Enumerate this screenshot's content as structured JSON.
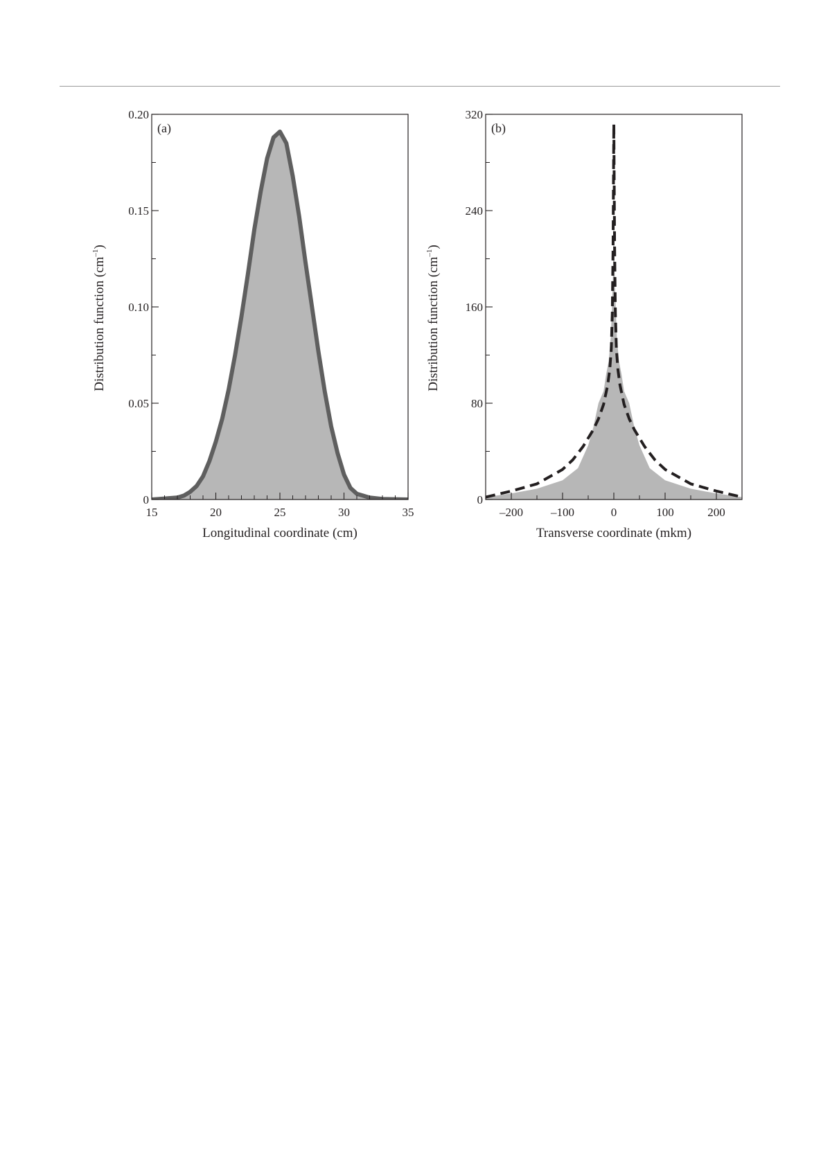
{
  "chart_data": [
    {
      "type": "area",
      "panel_label": "(a)",
      "xlabel": "Longitudinal coordinate (cm)",
      "ylabel": "Distribution function (cm",
      "ylabel_sup": "–1",
      "ylabel_end": ")",
      "xlim": [
        15,
        35
      ],
      "ylim": [
        0,
        0.2
      ],
      "x_ticks": [
        15,
        20,
        25,
        30,
        35
      ],
      "x_tick_labels": [
        "15",
        "20",
        "25",
        "30",
        "35"
      ],
      "y_ticks": [
        0,
        0.05,
        0.1,
        0.15,
        0.2
      ],
      "y_tick_labels": [
        "0",
        "0.05",
        "0.10",
        "0.15",
        "0.20"
      ],
      "colors": {
        "fill": "#b7b7b7",
        "line": "#5f5f5f",
        "axes": "#231f20"
      },
      "series": [
        {
          "style": "filled-histogram-with-solid-outline",
          "x": [
            15,
            16,
            17,
            17.5,
            18,
            18.5,
            19,
            19.5,
            20,
            20.5,
            21,
            21.5,
            22,
            22.5,
            23,
            23.5,
            24,
            24.5,
            25,
            25.5,
            26,
            26.5,
            27,
            27.5,
            28,
            28.5,
            29,
            29.5,
            30,
            30.5,
            31,
            32,
            33,
            35
          ],
          "y": [
            0,
            0.0005,
            0.001,
            0.002,
            0.004,
            0.007,
            0.012,
            0.02,
            0.03,
            0.042,
            0.057,
            0.075,
            0.095,
            0.117,
            0.14,
            0.16,
            0.177,
            0.188,
            0.191,
            0.185,
            0.168,
            0.147,
            0.123,
            0.1,
            0.077,
            0.056,
            0.038,
            0.024,
            0.013,
            0.006,
            0.003,
            0.001,
            0.0003,
            0
          ]
        }
      ]
    },
    {
      "type": "area",
      "panel_label": "(b)",
      "xlabel": "Transverse coordinate (mkm)",
      "ylabel": "Distribution function (cm",
      "ylabel_sup": "–1",
      "ylabel_end": ")",
      "xlim": [
        -250,
        250
      ],
      "ylim": [
        0,
        320
      ],
      "x_ticks": [
        -200,
        -100,
        0,
        100,
        200
      ],
      "x_tick_labels": [
        "–200",
        "–100",
        "0",
        "100",
        "200"
      ],
      "y_ticks": [
        0,
        80,
        160,
        240,
        320
      ],
      "y_tick_labels": [
        "0",
        "80",
        "160",
        "240",
        "320"
      ],
      "colors": {
        "fill": "#b7b7b7",
        "line": "#231f20",
        "axes": "#231f20"
      },
      "series": [
        {
          "style": "filled-histogram",
          "x": [
            -250,
            -200,
            -150,
            -100,
            -70,
            -50,
            -40,
            -30,
            -20,
            -15,
            -10,
            -6,
            -4,
            -2,
            -1,
            0,
            1,
            2,
            4,
            6,
            10,
            15,
            20,
            30,
            40,
            50,
            70,
            100,
            150,
            200,
            250
          ],
          "y": [
            2,
            5,
            9,
            16,
            26,
            45,
            60,
            80,
            90,
            104,
            115,
            135,
            155,
            180,
            210,
            300,
            210,
            180,
            155,
            135,
            115,
            104,
            90,
            80,
            60,
            45,
            26,
            16,
            9,
            5,
            2
          ]
        },
        {
          "style": "dashed-fit",
          "x": [
            -250,
            -200,
            -150,
            -100,
            -80,
            -60,
            -40,
            -30,
            -20,
            -12,
            -8,
            -5,
            -3,
            -1.5,
            0,
            1.5,
            3,
            5,
            8,
            12,
            20,
            30,
            40,
            60,
            80,
            100,
            150,
            200,
            250
          ],
          "y": [
            2,
            7,
            13,
            25,
            33,
            44,
            58,
            67,
            79,
            95,
            108,
            125,
            155,
            210,
            312,
            210,
            155,
            125,
            108,
            95,
            79,
            67,
            58,
            44,
            33,
            25,
            13,
            7,
            2
          ]
        }
      ]
    }
  ]
}
